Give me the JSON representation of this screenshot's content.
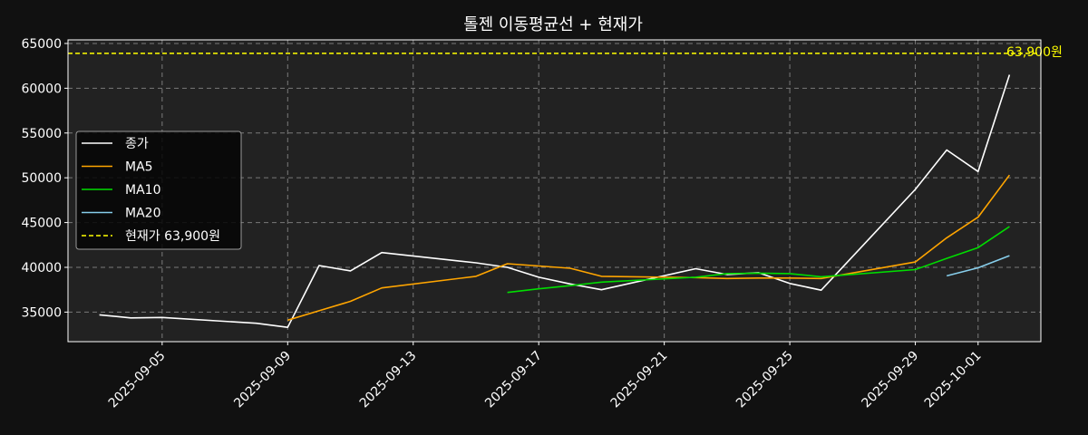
{
  "chart_data": {
    "type": "line",
    "title": "톨젠 이동평균선 + 현재가",
    "xlabel": "",
    "ylabel": "",
    "x_ticks": [
      "2025-09-05",
      "2025-09-09",
      "2025-09-13",
      "2025-09-17",
      "2025-09-21",
      "2025-09-25",
      "2025-09-29",
      "2025-10-01"
    ],
    "y_ticks": [
      35000,
      40000,
      45000,
      50000,
      55000,
      60000,
      65000
    ],
    "xlim": [
      "2025-09-02",
      "2025-10-03"
    ],
    "ylim": [
      31700,
      65400
    ],
    "grid": true,
    "legend_position": "center-left",
    "series": [
      {
        "name": "종가",
        "color": "#ffffff",
        "points": [
          [
            "2025-09-03",
            34700
          ],
          [
            "2025-09-04",
            34350
          ],
          [
            "2025-09-05",
            34400
          ],
          [
            "2025-09-08",
            33750
          ],
          [
            "2025-09-09",
            33300
          ],
          [
            "2025-09-10",
            40200
          ],
          [
            "2025-09-11",
            39600
          ],
          [
            "2025-09-12",
            41650
          ],
          [
            "2025-09-15",
            40500
          ],
          [
            "2025-09-16",
            40000
          ],
          [
            "2025-09-17",
            38900
          ],
          [
            "2025-09-18",
            38150
          ],
          [
            "2025-09-19",
            37500
          ],
          [
            "2025-09-22",
            39850
          ],
          [
            "2025-09-23",
            39200
          ],
          [
            "2025-09-24",
            39400
          ],
          [
            "2025-09-25",
            38200
          ],
          [
            "2025-09-26",
            37450
          ],
          [
            "2025-09-29",
            48700
          ],
          [
            "2025-09-30",
            53100
          ],
          [
            "2025-10-01",
            50700
          ],
          [
            "2025-10-02",
            61500
          ]
        ]
      },
      {
        "name": "MA5",
        "color": "#ffa500",
        "points": [
          [
            "2025-09-09",
            34100
          ],
          [
            "2025-09-10",
            35150
          ],
          [
            "2025-09-11",
            36200
          ],
          [
            "2025-09-12",
            37700
          ],
          [
            "2025-09-15",
            39000
          ],
          [
            "2025-09-16",
            40400
          ],
          [
            "2025-09-17",
            40150
          ],
          [
            "2025-09-18",
            39900
          ],
          [
            "2025-09-19",
            39000
          ],
          [
            "2025-09-22",
            38850
          ],
          [
            "2025-09-23",
            38750
          ],
          [
            "2025-09-24",
            38800
          ],
          [
            "2025-09-25",
            38800
          ],
          [
            "2025-09-26",
            38750
          ],
          [
            "2025-09-29",
            40600
          ],
          [
            "2025-09-30",
            43300
          ],
          [
            "2025-10-01",
            45600
          ],
          [
            "2025-10-02",
            50300
          ]
        ]
      },
      {
        "name": "MA10",
        "color": "#00dd00",
        "points": [
          [
            "2025-09-16",
            37200
          ],
          [
            "2025-09-17",
            37600
          ],
          [
            "2025-09-18",
            37950
          ],
          [
            "2025-09-19",
            38350
          ],
          [
            "2025-09-22",
            38900
          ],
          [
            "2025-09-23",
            39300
          ],
          [
            "2025-09-24",
            39350
          ],
          [
            "2025-09-25",
            39300
          ],
          [
            "2025-09-26",
            38950
          ],
          [
            "2025-09-29",
            39750
          ],
          [
            "2025-09-30",
            41000
          ],
          [
            "2025-10-01",
            42200
          ],
          [
            "2025-10-02",
            44550
          ]
        ]
      },
      {
        "name": "MA20",
        "color": "#87ceeb",
        "points": [
          [
            "2025-09-30",
            39050
          ],
          [
            "2025-10-01",
            39950
          ],
          [
            "2025-10-02",
            41300
          ]
        ]
      }
    ],
    "current_price": {
      "value": 63900,
      "legend_label": "현재가 63,900원",
      "annotation": "63,900원",
      "color": "#ffff00"
    }
  }
}
